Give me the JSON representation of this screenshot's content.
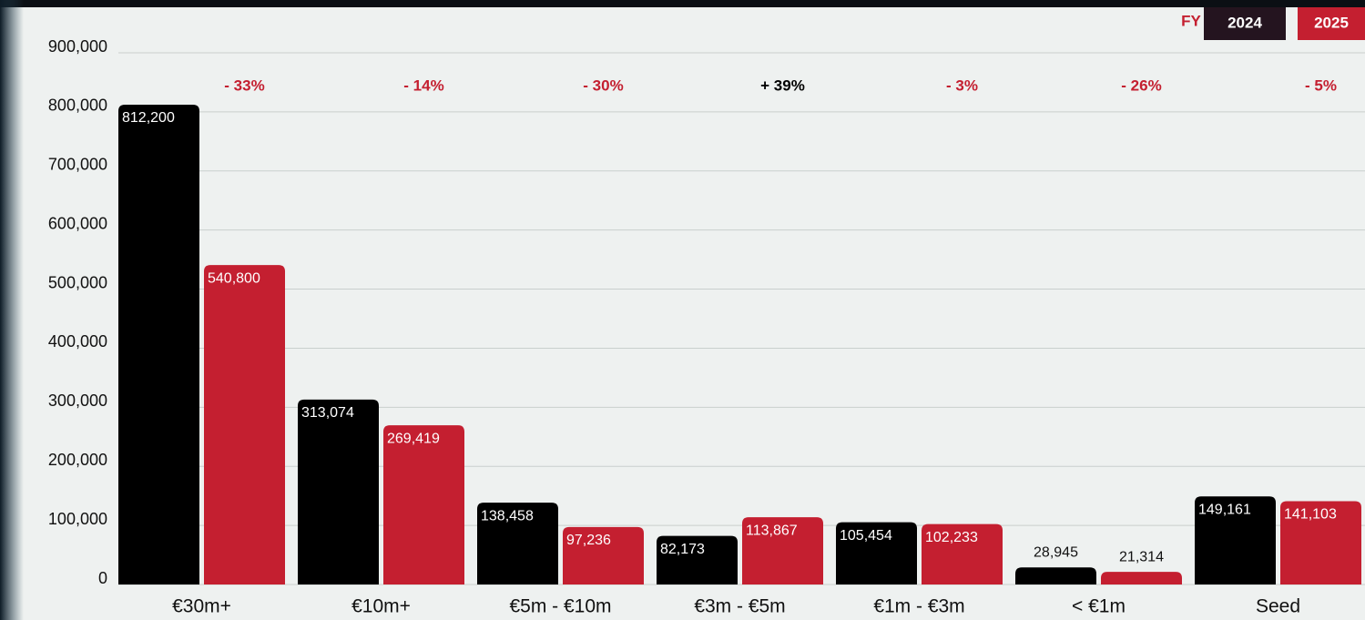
{
  "chart_data": {
    "type": "bar",
    "legend_title": "FY",
    "categories": [
      "€30m+",
      "€10m+",
      "€5m - €10m",
      "€3m - €5m",
      "€1m - €3m",
      "< €1m",
      "Seed"
    ],
    "series": [
      {
        "name": "2024",
        "color": "#000000",
        "legend_color": "#24141f",
        "values": [
          812200,
          313074,
          138458,
          82173,
          105454,
          28945,
          149161
        ],
        "value_labels": [
          "812,200",
          "313,074",
          "138,458",
          "82,173",
          "105,454",
          "28,945",
          "149,161"
        ]
      },
      {
        "name": "2025",
        "color": "#c41f30",
        "legend_color": "#c41f30",
        "values": [
          540800,
          269419,
          97236,
          113867,
          102233,
          21314,
          141103
        ],
        "value_labels": [
          "540,800",
          "269,419",
          "97,236",
          "113,867",
          "102,233",
          "21,314",
          "141,103"
        ]
      }
    ],
    "annotations": [
      {
        "text": "- 33%",
        "color": "#c41f30"
      },
      {
        "text": "- 14%",
        "color": "#c41f30"
      },
      {
        "text": "- 30%",
        "color": "#c41f30"
      },
      {
        "text": "+ 39%",
        "color": "#000000"
      },
      {
        "text": "- 3%",
        "color": "#c41f30"
      },
      {
        "text": "- 26%",
        "color": "#c41f30"
      },
      {
        "text": "- 5%",
        "color": "#c41f30"
      }
    ],
    "ylim": [
      0,
      900000
    ],
    "yticks": [
      0,
      {
        "value": 100000,
        "label": "100,000"
      },
      {
        "value": 200000,
        "label": "200,000"
      },
      {
        "value": 300000,
        "label": "300,000"
      },
      {
        "value": 400000,
        "label": "400,000"
      },
      {
        "value": 500000,
        "label": "500,000"
      },
      {
        "value": 600000,
        "label": "600,000"
      },
      {
        "value": 700000,
        "label": "700,000"
      },
      {
        "value": 800000,
        "label": "800,000"
      },
      {
        "value": 900000,
        "label": "900,000"
      }
    ],
    "grid": true
  }
}
